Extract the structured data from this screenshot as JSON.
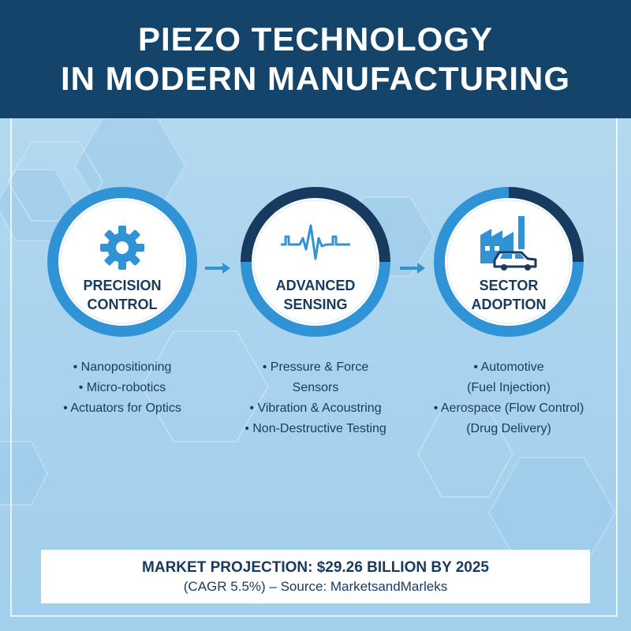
{
  "header": {
    "title_line1": "PIEZO TECHNOLOGY",
    "title_line2": "IN MODERN MANUFACTURING"
  },
  "stages": [
    {
      "label_line1": "PRECISION",
      "label_line2": "CONTROL",
      "icon": "gear-icon",
      "bullets": [
        "• Nanopositioning",
        "• Micro-robotics",
        "• Actuators for Optics"
      ]
    },
    {
      "label_line1": "ADVANCED",
      "label_line2": "SENSING",
      "icon": "waveform-icon",
      "bullets": [
        "• Pressure & Force",
        "Sensors",
        "• Vibration & Acoustring",
        "• Non-Destructive Testing"
      ]
    },
    {
      "label_line1": "SECTOR",
      "label_line2": "ADOPTION",
      "icon": "factory-car-icon",
      "bullets": [
        "• Automotive",
        "(Fuel Injection)",
        "• Aerospace (Flow Control)",
        "(Drug Delivery)"
      ]
    }
  ],
  "footer": {
    "line1": "MARKET PROJECTION: $29.26 BILLION BY 2025",
    "line2": "(CAGR 5.5%) – Source: MarketsandMarleks"
  },
  "colors": {
    "header_bg": "#15446a",
    "accent_blue": "#2f93d6",
    "dark_navy": "#173a5e",
    "background": "#aed6ef"
  }
}
